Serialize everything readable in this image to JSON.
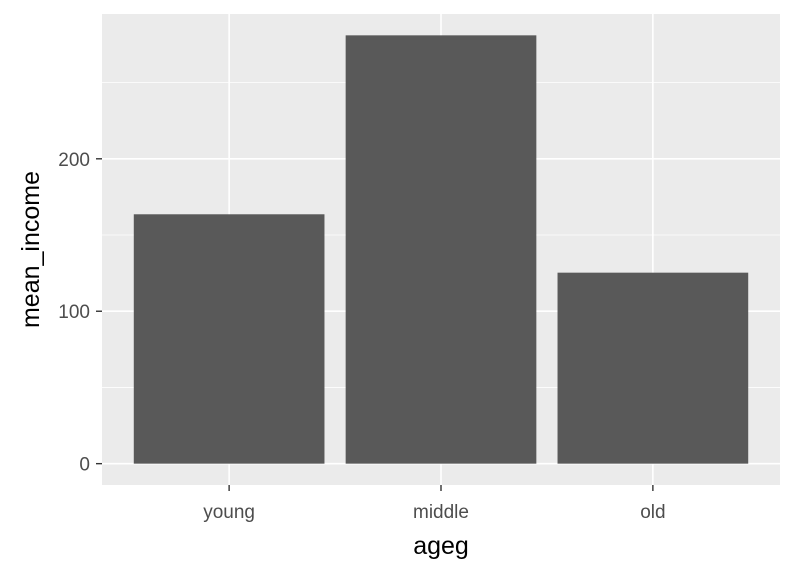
{
  "chart_data": {
    "type": "bar",
    "title": "",
    "xlabel": "ageg",
    "ylabel": "mean_income",
    "categories": [
      "young",
      "middle",
      "old"
    ],
    "values": [
      163.6,
      281.0,
      125.3
    ],
    "ylim": [
      -14,
      295
    ],
    "yticks": [
      0,
      100,
      200
    ],
    "ytick_labels": [
      "0",
      "100",
      "200"
    ],
    "grid": true,
    "legend": "none",
    "colors": {
      "panel": "#ebebeb",
      "grid": "#ffffff",
      "bar": "#595959",
      "tick_text": "#4d4d4d",
      "tick_mark": "#333333",
      "title_text": "#000000"
    }
  }
}
